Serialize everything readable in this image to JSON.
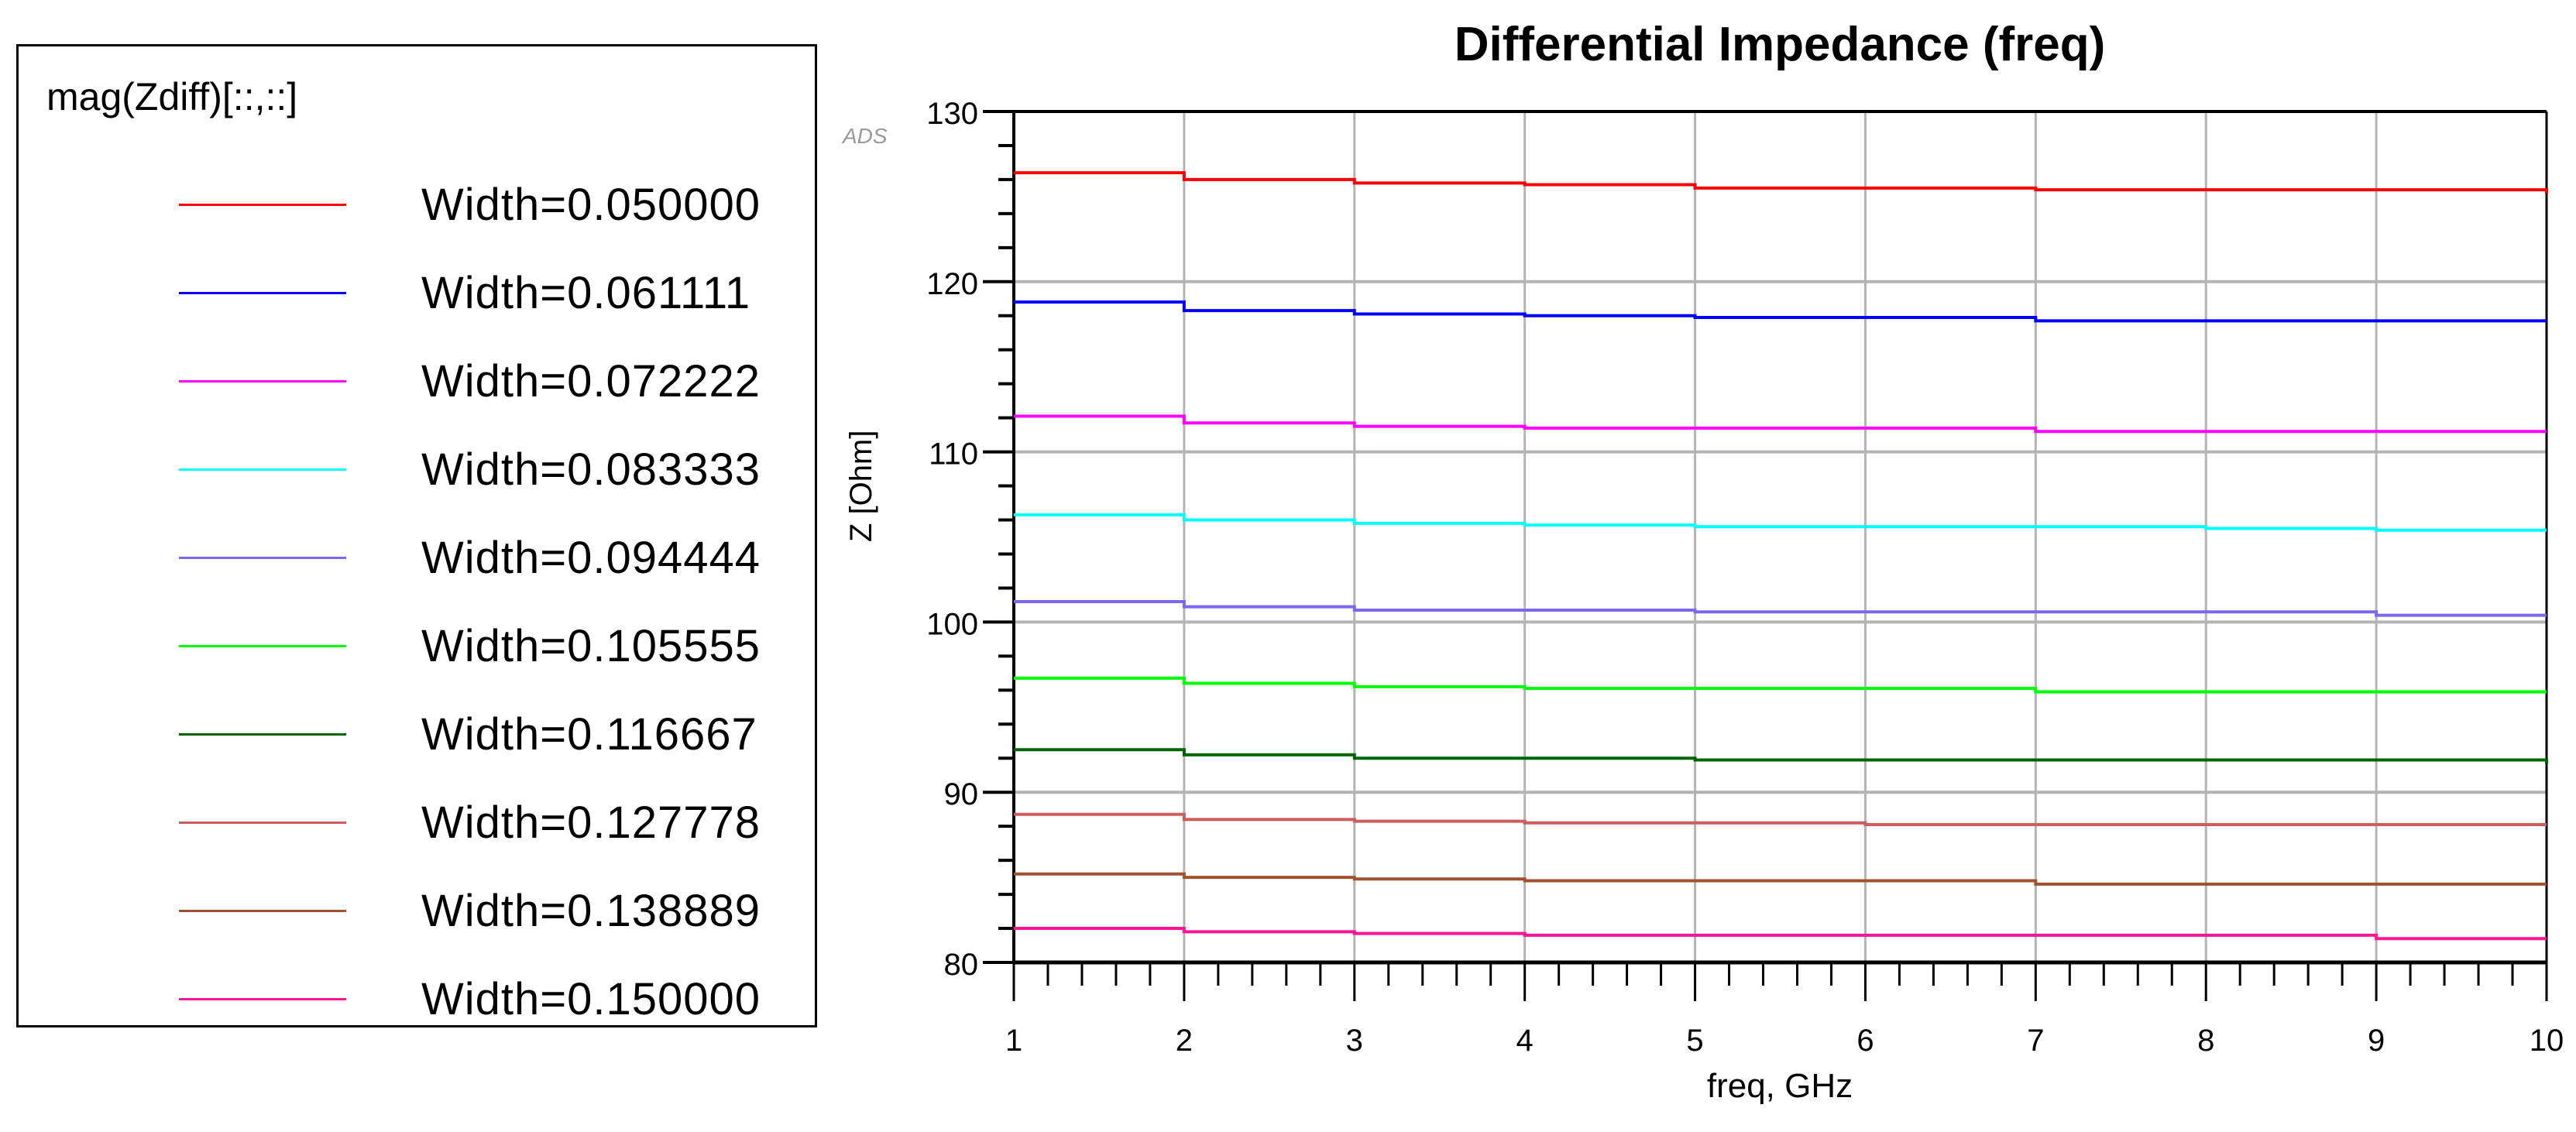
{
  "legend": {
    "title": "mag(Zdiff)[::,::]",
    "items": [
      {
        "label": "Width=0.050000",
        "color": "#ff0000"
      },
      {
        "label": "Width=0.061111",
        "color": "#0000ff"
      },
      {
        "label": "Width=0.072222",
        "color": "#ff00ff"
      },
      {
        "label": "Width=0.083333",
        "color": "#00ffff"
      },
      {
        "label": "Width=0.094444",
        "color": "#7b68ee"
      },
      {
        "label": "Width=0.105555",
        "color": "#00ff00"
      },
      {
        "label": "Width=0.116667",
        "color": "#006400"
      },
      {
        "label": "Width=0.127778",
        "color": "#cd5c5c"
      },
      {
        "label": "Width=0.138889",
        "color": "#a0522d"
      },
      {
        "label": "Width=0.150000",
        "color": "#ff1493"
      }
    ]
  },
  "watermark": "ADS",
  "chart_data": {
    "type": "line",
    "title": "Differential Impedance (freq)",
    "xlabel": "freq, GHz",
    "ylabel": "Z [Ohm]",
    "xlim": [
      1,
      10
    ],
    "ylim": [
      80,
      130
    ],
    "xticks": [
      "1",
      "2",
      "3",
      "4",
      "5",
      "6",
      "7",
      "8",
      "9",
      "10"
    ],
    "yticks": [
      "80",
      "90",
      "100",
      "110",
      "120",
      "130"
    ],
    "grid": true,
    "legend_position": "left-outside",
    "x": [
      1,
      2,
      3,
      4,
      5,
      6,
      7,
      8,
      9,
      10
    ],
    "series": [
      {
        "name": "Width=0.050000",
        "color": "#ff0000",
        "values": [
          126.4,
          126.0,
          125.8,
          125.7,
          125.5,
          125.5,
          125.4,
          125.4,
          125.4,
          125.2
        ]
      },
      {
        "name": "Width=0.061111",
        "color": "#0000ff",
        "values": [
          118.8,
          118.3,
          118.1,
          118.0,
          117.9,
          117.9,
          117.7,
          117.7,
          117.7,
          117.7
        ]
      },
      {
        "name": "Width=0.072222",
        "color": "#ff00ff",
        "values": [
          112.1,
          111.7,
          111.5,
          111.4,
          111.4,
          111.4,
          111.2,
          111.2,
          111.2,
          111.2
        ]
      },
      {
        "name": "Width=0.083333",
        "color": "#00ffff",
        "values": [
          106.3,
          106.0,
          105.8,
          105.7,
          105.6,
          105.6,
          105.6,
          105.5,
          105.4,
          105.4
        ]
      },
      {
        "name": "Width=0.094444",
        "color": "#7b68ee",
        "values": [
          101.2,
          100.9,
          100.7,
          100.7,
          100.6,
          100.6,
          100.6,
          100.6,
          100.4,
          100.4
        ]
      },
      {
        "name": "Width=0.105555",
        "color": "#00ff00",
        "values": [
          96.7,
          96.4,
          96.2,
          96.1,
          96.1,
          96.1,
          95.9,
          95.9,
          95.9,
          95.9
        ]
      },
      {
        "name": "Width=0.116667",
        "color": "#006400",
        "values": [
          92.5,
          92.2,
          92.0,
          92.0,
          91.9,
          91.9,
          91.9,
          91.9,
          91.9,
          91.7
        ]
      },
      {
        "name": "Width=0.127778",
        "color": "#cd5c5c",
        "values": [
          88.7,
          88.4,
          88.3,
          88.2,
          88.2,
          88.1,
          88.1,
          88.1,
          88.1,
          88.1
        ]
      },
      {
        "name": "Width=0.138889",
        "color": "#a0522d",
        "values": [
          85.2,
          85.0,
          84.9,
          84.8,
          84.8,
          84.8,
          84.6,
          84.6,
          84.6,
          84.6
        ]
      },
      {
        "name": "Width=0.150000",
        "color": "#ff1493",
        "values": [
          82.0,
          81.8,
          81.7,
          81.6,
          81.6,
          81.6,
          81.6,
          81.6,
          81.4,
          81.4
        ]
      }
    ]
  }
}
